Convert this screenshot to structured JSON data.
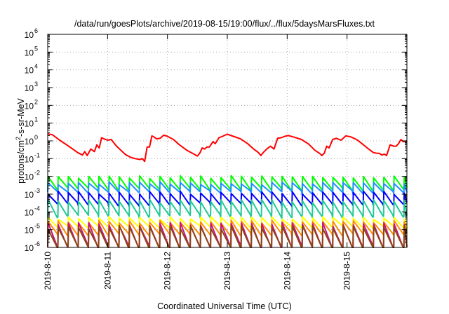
{
  "chart_data": {
    "type": "line",
    "title": "/data/run/goesPlots/archive/2019-08-15/19:00/flux/../flux/5daysMarsFluxes.txt",
    "xlabel": "Coordinated Universal Time (UTC)",
    "ylabel_main": "protons/cm",
    "ylabel_sup": "2",
    "ylabel_rest": "-s-sr-MeV",
    "x_ticks": [
      "2019-8-10",
      "2019-8-11",
      "2019-8-12",
      "2019-8-13",
      "2019-8-14",
      "2019-8-15"
    ],
    "x_range_days": [
      0,
      6.0
    ],
    "y_scale": "log",
    "y_range_exponent": [
      -6,
      6
    ],
    "y_tick_exponents": [
      -6,
      -5,
      -4,
      -3,
      -2,
      -1,
      0,
      1,
      2,
      3,
      4,
      5,
      6
    ],
    "grid": true,
    "legend": "none",
    "series": [
      {
        "color": "#ff0000",
        "x": [
          0.0,
          0.08,
          0.2,
          0.35,
          0.5,
          0.58,
          0.62,
          0.66,
          0.72,
          0.78,
          0.82,
          0.86,
          0.9,
          0.94,
          1.0,
          1.06,
          1.14,
          1.22,
          1.3,
          1.38,
          1.46,
          1.54,
          1.58,
          1.62,
          1.66,
          1.7,
          1.74,
          1.78,
          1.82,
          1.88,
          1.94,
          2.0,
          2.1,
          2.2,
          2.32,
          2.42,
          2.5,
          2.54,
          2.58,
          2.62,
          2.66,
          2.7,
          2.76,
          2.8,
          2.86,
          2.92,
          3.0,
          3.1,
          3.22,
          3.34,
          3.44,
          3.52,
          3.56,
          3.6,
          3.66,
          3.72,
          3.78,
          3.84,
          3.9,
          3.96,
          4.02,
          4.12,
          4.24,
          4.36,
          4.46,
          4.54,
          4.58,
          4.62,
          4.66,
          4.7,
          4.76,
          4.82,
          4.9,
          4.98,
          5.06,
          5.16,
          5.26,
          5.36,
          5.44,
          5.5,
          5.54,
          5.58,
          5.62,
          5.66,
          5.72,
          5.78,
          5.82,
          5.86,
          5.9,
          5.94,
          6.0
        ],
        "values": [
          2.5,
          2.2,
          1.1,
          0.5,
          0.22,
          0.16,
          0.25,
          0.15,
          0.35,
          0.25,
          0.6,
          0.4,
          1.5,
          1.3,
          1.1,
          1.2,
          0.55,
          0.3,
          0.17,
          0.12,
          0.1,
          0.09,
          0.1,
          0.07,
          0.45,
          0.45,
          1.9,
          1.6,
          1.3,
          1.4,
          2.1,
          1.8,
          1.2,
          0.6,
          0.3,
          0.2,
          0.14,
          0.2,
          0.4,
          0.35,
          0.45,
          0.45,
          0.9,
          0.7,
          1.5,
          1.8,
          2.4,
          1.8,
          1.3,
          0.7,
          0.35,
          0.22,
          0.15,
          0.22,
          0.35,
          0.5,
          0.35,
          1.4,
          1.5,
          1.8,
          2.0,
          1.6,
          1.2,
          0.65,
          0.3,
          0.2,
          0.15,
          0.2,
          0.5,
          0.4,
          1.2,
          1.4,
          1.1,
          1.9,
          1.7,
          1.2,
          0.65,
          0.35,
          0.22,
          0.2,
          0.2,
          0.16,
          0.18,
          0.15,
          0.6,
          0.5,
          0.5,
          0.7,
          1.2,
          0.9,
          1.0
        ]
      },
      {
        "color": "#00ff00",
        "base": 0.004,
        "amp": 2.3,
        "period": 0.17,
        "noise": 0.45
      },
      {
        "color": "#1e90ff",
        "base": 0.0022,
        "amp": 1.9,
        "period": 0.17,
        "noise": 0.4
      },
      {
        "color": "#0000ff",
        "base": 0.00055,
        "amp": 2.2,
        "period": 0.17,
        "noise": 0.45
      },
      {
        "color": "#20c997",
        "base": 0.00015,
        "amp": 2.8,
        "period": 0.17,
        "noise": 0.45
      },
      {
        "color": "#ffff00",
        "base": 2.4e-05,
        "amp": 1.9,
        "period": 0.17,
        "noise": 0.35
      },
      {
        "color": "#ff8c00",
        "base": 1.2e-05,
        "amp": 2.4,
        "period": 0.17,
        "noise": 0.4
      },
      {
        "color": "#c71585",
        "base": 4.5e-06,
        "amp": 4.5,
        "period": 0.17,
        "noise": 0.5
      },
      {
        "color": "#8b4513",
        "base": 3.5e-06,
        "amp": 4.0,
        "period": 0.17,
        "noise": 0.5
      }
    ]
  }
}
